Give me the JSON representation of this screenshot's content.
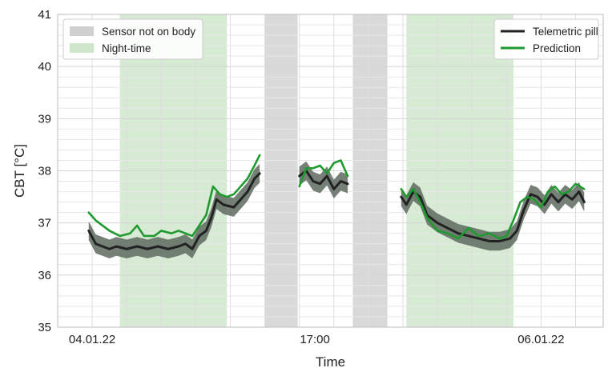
{
  "chart_data": {
    "type": "line",
    "xlabel": "Time",
    "ylabel": "CBT [°C]",
    "ylim": [
      35,
      41
    ],
    "yticks": [
      35,
      36,
      37,
      38,
      39,
      40,
      41
    ],
    "xlim": [
      0,
      15.8
    ],
    "xticks": [
      {
        "x": 1,
        "label": "04.01.22"
      },
      {
        "x": 7.45,
        "label": "17:00"
      },
      {
        "x": 14,
        "label": "06.01.22"
      }
    ],
    "grid": true,
    "legend_left_placement": "upper-left",
    "legend_right_placement": "upper-right",
    "shaded_regions": [
      {
        "name": "Night-time",
        "kind": "night",
        "color": "#d6ead4",
        "start": 1.8,
        "end": 4.9
      },
      {
        "name": "Sensor not on body",
        "kind": "sensor",
        "color": "#d9d9d9",
        "start": 6.0,
        "end": 6.95
      },
      {
        "name": "Sensor not on body",
        "kind": "sensor",
        "color": "#d9d9d9",
        "start": 8.55,
        "end": 9.55
      },
      {
        "name": "Night-time",
        "kind": "night",
        "color": "#d6ead4",
        "start": 10.1,
        "end": 13.2
      }
    ],
    "legend_regions": [
      {
        "label": "Sensor not on body",
        "color": "#d0d0d0"
      },
      {
        "label": "Night-time",
        "color": "#cfe6cc"
      }
    ],
    "series": [
      {
        "name": "Telemetric pill",
        "color": "#222222",
        "band_color": "#5e6a5f",
        "band_halfwidth": 0.18,
        "segments": [
          [
            [
              0.9,
              36.85
            ],
            [
              1.1,
              36.6
            ],
            [
              1.3,
              36.55
            ],
            [
              1.5,
              36.5
            ],
            [
              1.7,
              36.55
            ],
            [
              2.0,
              36.5
            ],
            [
              2.3,
              36.55
            ],
            [
              2.6,
              36.5
            ],
            [
              2.9,
              36.55
            ],
            [
              3.2,
              36.5
            ],
            [
              3.5,
              36.55
            ],
            [
              3.7,
              36.6
            ],
            [
              3.9,
              36.5
            ],
            [
              4.1,
              36.75
            ],
            [
              4.3,
              36.85
            ],
            [
              4.45,
              37.1
            ],
            [
              4.6,
              37.45
            ],
            [
              4.8,
              37.35
            ],
            [
              5.1,
              37.3
            ],
            [
              5.3,
              37.45
            ],
            [
              5.5,
              37.6
            ],
            [
              5.7,
              37.85
            ],
            [
              5.85,
              37.95
            ]
          ],
          [
            [
              7.0,
              37.9
            ],
            [
              7.2,
              38.0
            ],
            [
              7.4,
              37.8
            ],
            [
              7.6,
              37.75
            ],
            [
              7.8,
              37.9
            ],
            [
              8.0,
              37.65
            ],
            [
              8.2,
              37.8
            ],
            [
              8.4,
              37.75
            ]
          ],
          [
            [
              9.95,
              37.5
            ],
            [
              10.1,
              37.35
            ],
            [
              10.3,
              37.6
            ],
            [
              10.5,
              37.5
            ],
            [
              10.7,
              37.15
            ],
            [
              11.0,
              37.0
            ],
            [
              11.3,
              36.9
            ],
            [
              11.6,
              36.8
            ],
            [
              11.9,
              36.75
            ],
            [
              12.2,
              36.7
            ],
            [
              12.5,
              36.65
            ],
            [
              12.8,
              36.65
            ],
            [
              13.1,
              36.7
            ],
            [
              13.3,
              36.85
            ],
            [
              13.5,
              37.25
            ],
            [
              13.7,
              37.55
            ],
            [
              13.9,
              37.5
            ],
            [
              14.1,
              37.35
            ],
            [
              14.3,
              37.55
            ],
            [
              14.5,
              37.4
            ],
            [
              14.7,
              37.55
            ],
            [
              14.9,
              37.45
            ],
            [
              15.1,
              37.6
            ],
            [
              15.25,
              37.4
            ]
          ]
        ]
      },
      {
        "name": "Prediction",
        "color": "#1f9a2e",
        "segments": [
          [
            [
              0.9,
              37.2
            ],
            [
              1.1,
              37.05
            ],
            [
              1.3,
              36.95
            ],
            [
              1.5,
              36.85
            ],
            [
              1.8,
              36.75
            ],
            [
              2.1,
              36.8
            ],
            [
              2.3,
              36.95
            ],
            [
              2.5,
              36.75
            ],
            [
              2.8,
              36.75
            ],
            [
              3.0,
              36.85
            ],
            [
              3.3,
              36.8
            ],
            [
              3.5,
              36.85
            ],
            [
              3.7,
              36.8
            ],
            [
              3.9,
              36.75
            ],
            [
              4.1,
              36.95
            ],
            [
              4.3,
              37.15
            ],
            [
              4.5,
              37.7
            ],
            [
              4.7,
              37.55
            ],
            [
              4.9,
              37.5
            ],
            [
              5.1,
              37.55
            ],
            [
              5.3,
              37.7
            ],
            [
              5.5,
              37.85
            ],
            [
              5.7,
              38.1
            ],
            [
              5.85,
              38.3
            ]
          ],
          [
            [
              7.0,
              37.7
            ],
            [
              7.2,
              38.05
            ],
            [
              7.4,
              38.05
            ],
            [
              7.6,
              38.1
            ],
            [
              7.8,
              37.95
            ],
            [
              8.0,
              38.15
            ],
            [
              8.2,
              38.2
            ],
            [
              8.4,
              37.9
            ]
          ],
          [
            [
              9.95,
              37.65
            ],
            [
              10.1,
              37.5
            ],
            [
              10.3,
              37.65
            ],
            [
              10.5,
              37.4
            ],
            [
              10.7,
              37.1
            ],
            [
              11.0,
              36.85
            ],
            [
              11.3,
              36.8
            ],
            [
              11.6,
              36.7
            ],
            [
              11.9,
              36.9
            ],
            [
              12.2,
              36.75
            ],
            [
              12.5,
              36.8
            ],
            [
              12.8,
              36.7
            ],
            [
              13.0,
              36.75
            ],
            [
              13.2,
              37.05
            ],
            [
              13.4,
              37.4
            ],
            [
              13.6,
              37.5
            ],
            [
              13.8,
              37.45
            ],
            [
              14.0,
              37.3
            ],
            [
              14.2,
              37.6
            ],
            [
              14.4,
              37.7
            ],
            [
              14.6,
              37.55
            ],
            [
              14.8,
              37.6
            ],
            [
              15.0,
              37.75
            ],
            [
              15.25,
              37.65
            ]
          ]
        ]
      }
    ]
  }
}
